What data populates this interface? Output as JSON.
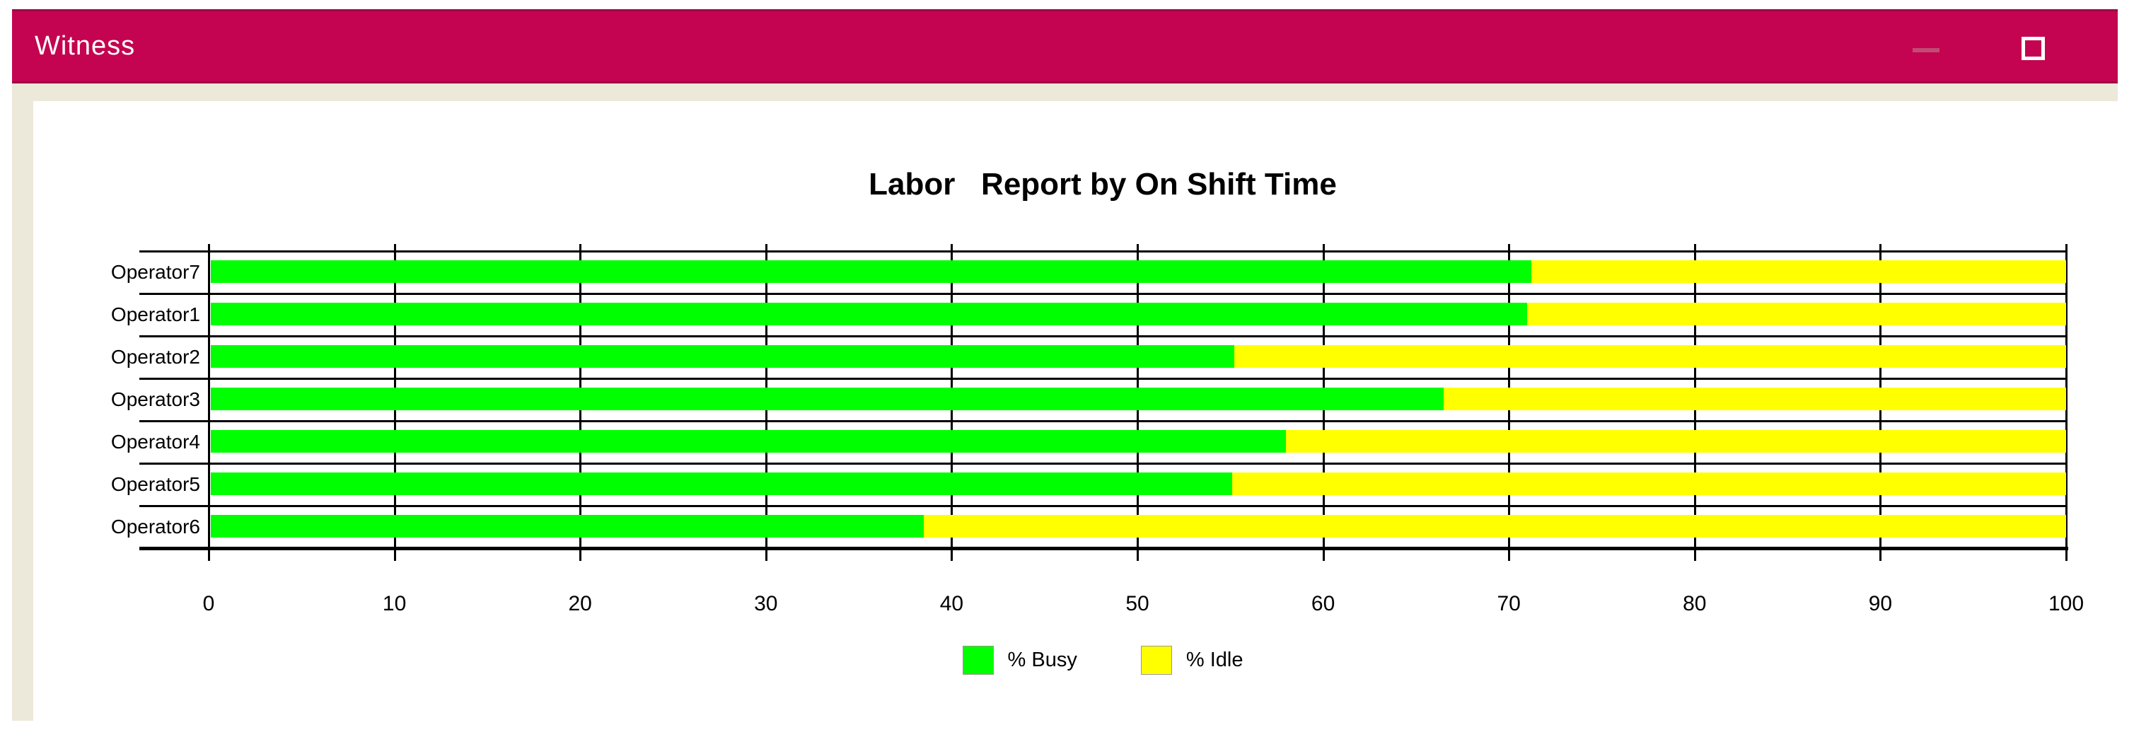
{
  "window": {
    "title": "Witness",
    "controls": {
      "minimize_label": "minimize",
      "maximize_label": "maximize"
    }
  },
  "colors": {
    "titlebar": "#C40450",
    "titlebar_edge": "#A00548",
    "frame_beige": "#ECE9DA",
    "busy_green": "#00FF00",
    "idle_yellow": "#FFFF00",
    "axis_black": "#000000",
    "panel_white": "#FFFFFF"
  },
  "chart_data": {
    "type": "bar",
    "orientation": "horizontal",
    "stacked": true,
    "title": "Labor   Report by On Shift Time",
    "categories": [
      "Operator7",
      "Operator1",
      "Operator2",
      "Operator3",
      "Operator4",
      "Operator5",
      "Operator6"
    ],
    "series": [
      {
        "name": "% Busy",
        "color": "#00FF00",
        "values": [
          71.2,
          71.0,
          55.2,
          66.5,
          58.0,
          55.1,
          38.5
        ]
      },
      {
        "name": "% Idle",
        "color": "#FFFF00",
        "values": [
          28.8,
          29.0,
          44.8,
          33.5,
          42.0,
          44.9,
          61.5
        ]
      }
    ],
    "xlim": [
      0,
      100
    ],
    "xticks": [
      0,
      10,
      20,
      30,
      40,
      50,
      60,
      70,
      80,
      90,
      100
    ],
    "xlabel": "",
    "ylabel": "",
    "legend_position": "bottom",
    "grid": "vertical tick lines at every 10 units"
  }
}
